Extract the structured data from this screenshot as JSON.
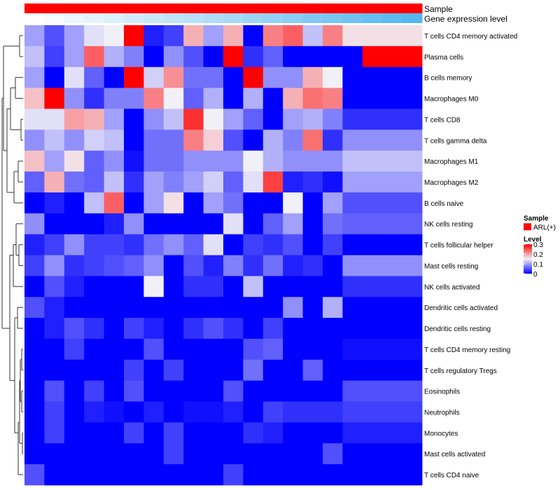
{
  "chart_data": {
    "type": "heatmap",
    "annotation_tracks": [
      {
        "name": "Sample",
        "color": "#ff0000"
      },
      {
        "name": "Gene expression level",
        "colors": [
          "#ffffff",
          "#f6fbfe",
          "#eef7fd",
          "#e5f4fc",
          "#dcf0fb",
          "#d3ecfa",
          "#caE8f9",
          "#c1e4f8",
          "#b8e1f8",
          "#afddf7",
          "#a6d9f6",
          "#9dd5f5",
          "#94d1f4",
          "#8bcdf3",
          "#82c9f2",
          "#79c6f1",
          "#70c2f0",
          "#67beef",
          "#5ebaee",
          "#55b6ed",
          "#4fb4ec"
        ]
      }
    ],
    "rows": [
      "T cells CD4 memory activated",
      "Plasma cells",
      "B cells memory",
      "Macrophages M0",
      "T cells CD8",
      "T cells gamma delta",
      "Macrophages M1",
      "Macrophages M2",
      "B cells naive",
      "NK cells resting",
      "T cells follicular helper",
      "Mast cells resting",
      "NK cells activated",
      "Dendritic cells activated",
      "Dendritic cells resting",
      "T cells CD4 memory resting",
      "T cells regulatory  Tregs",
      "Eosinophils",
      "Neutrophils",
      "Monocytes",
      "Mast cells activated",
      "T cells CD4 naive"
    ],
    "n_samples": 20,
    "values": [
      [
        0.1,
        0.05,
        0.1,
        0.14,
        0.15,
        0.3,
        0.02,
        0.04,
        0.19,
        0.1,
        0.19,
        0.0,
        0.22,
        0.24,
        0.12,
        0.22,
        0.16,
        0.16,
        0.16,
        0.16
      ],
      [
        0.12,
        0.04,
        0.1,
        0.24,
        0.11,
        0.08,
        0.0,
        0.09,
        0.05,
        0.0,
        0.3,
        0.03,
        0.06,
        0.0,
        0.0,
        0.0,
        0.0,
        0.3,
        0.3,
        0.3
      ],
      [
        0.1,
        0.0,
        0.14,
        0.06,
        0.0,
        0.3,
        0.13,
        0.21,
        0.07,
        0.07,
        0.0,
        0.3,
        0.09,
        0.09,
        0.19,
        0.15,
        0.0,
        0.0,
        0.0,
        0.0
      ],
      [
        0.18,
        0.3,
        0.09,
        0.03,
        0.08,
        0.08,
        0.22,
        0.15,
        0.06,
        0.11,
        0.0,
        0.11,
        0.0,
        0.19,
        0.23,
        0.22,
        0.0,
        0.0,
        0.0,
        0.0
      ],
      [
        0.14,
        0.14,
        0.2,
        0.19,
        0.1,
        0.0,
        0.09,
        0.12,
        0.27,
        0.15,
        0.1,
        0.06,
        0.0,
        0.1,
        0.11,
        0.08,
        0.03,
        0.03,
        0.03,
        0.03
      ],
      [
        0.09,
        0.12,
        0.09,
        0.13,
        0.12,
        0.0,
        0.07,
        0.07,
        0.22,
        0.17,
        0.05,
        0.0,
        0.11,
        0.08,
        0.23,
        0.03,
        0.09,
        0.09,
        0.09,
        0.09
      ],
      [
        0.18,
        0.1,
        0.16,
        0.06,
        0.09,
        0.01,
        0.07,
        0.07,
        0.09,
        0.09,
        0.09,
        0.15,
        0.11,
        0.09,
        0.09,
        0.09,
        0.12,
        0.12,
        0.12,
        0.12
      ],
      [
        0.06,
        0.19,
        0.07,
        0.06,
        0.12,
        0.03,
        0.1,
        0.08,
        0.1,
        0.13,
        0.06,
        0.14,
        0.26,
        0.02,
        0.03,
        0.01,
        0.1,
        0.1,
        0.1,
        0.1
      ],
      [
        0.0,
        0.02,
        0.0,
        0.12,
        0.24,
        0.0,
        0.1,
        0.16,
        0.0,
        0.1,
        0.07,
        0.0,
        0.0,
        0.15,
        0.0,
        0.1,
        0.05,
        0.05,
        0.05,
        0.05
      ],
      [
        0.09,
        0.0,
        0.0,
        0.0,
        0.02,
        0.09,
        0.0,
        0.0,
        0.0,
        0.0,
        0.14,
        0.0,
        0.06,
        0.1,
        0.0,
        0.07,
        0.06,
        0.06,
        0.06,
        0.06
      ],
      [
        0.02,
        0.04,
        0.09,
        0.04,
        0.04,
        0.03,
        0.07,
        0.09,
        0.06,
        0.14,
        0.0,
        0.04,
        0.03,
        0.05,
        0.0,
        0.04,
        0.0,
        0.0,
        0.0,
        0.0
      ],
      [
        0.04,
        0.09,
        0.03,
        0.04,
        0.05,
        0.06,
        0.09,
        0.0,
        0.05,
        0.02,
        0.08,
        0.03,
        0.07,
        0.02,
        0.03,
        0.0,
        0.09,
        0.09,
        0.09,
        0.09
      ],
      [
        0.0,
        0.05,
        0.02,
        0.0,
        0.0,
        0.0,
        0.15,
        0.0,
        0.03,
        0.03,
        0.0,
        0.12,
        0.0,
        0.0,
        0.0,
        0.0,
        0.03,
        0.03,
        0.03,
        0.03
      ],
      [
        0.05,
        0.02,
        0.0,
        0.0,
        0.0,
        0.0,
        0.0,
        0.0,
        0.0,
        0.0,
        0.0,
        0.0,
        0.0,
        0.09,
        0.0,
        0.11,
        0.0,
        0.0,
        0.0,
        0.0
      ],
      [
        0.0,
        0.02,
        0.05,
        0.03,
        0.0,
        0.04,
        0.02,
        0.0,
        0.03,
        0.05,
        0.03,
        0.0,
        0.04,
        0.0,
        0.0,
        0.0,
        0.0,
        0.0,
        0.0,
        0.0
      ],
      [
        0.0,
        0.0,
        0.04,
        0.0,
        0.0,
        0.0,
        0.05,
        0.0,
        0.0,
        0.0,
        0.0,
        0.05,
        0.06,
        0.0,
        0.0,
        0.0,
        0.01,
        0.01,
        0.01,
        0.01
      ],
      [
        0.0,
        0.0,
        0.0,
        0.0,
        0.0,
        0.04,
        0.0,
        0.04,
        0.0,
        0.0,
        0.0,
        0.07,
        0.0,
        0.0,
        0.06,
        0.0,
        0.0,
        0.0,
        0.0,
        0.0
      ],
      [
        0.0,
        0.05,
        0.0,
        0.04,
        0.0,
        0.05,
        0.0,
        0.0,
        0.0,
        0.0,
        0.05,
        0.0,
        0.0,
        0.0,
        0.0,
        0.0,
        0.05,
        0.05,
        0.05,
        0.05
      ],
      [
        0.0,
        0.04,
        0.0,
        0.02,
        0.01,
        0.0,
        0.02,
        0.0,
        0.01,
        0.01,
        0.02,
        0.0,
        0.04,
        0.03,
        0.03,
        0.03,
        0.04,
        0.04,
        0.04,
        0.04
      ],
      [
        0.0,
        0.04,
        0.0,
        0.0,
        0.0,
        0.04,
        0.0,
        0.04,
        0.0,
        0.0,
        0.0,
        0.03,
        0.02,
        0.0,
        0.0,
        0.0,
        0.02,
        0.02,
        0.02,
        0.02
      ],
      [
        0.0,
        0.0,
        0.0,
        0.0,
        0.0,
        0.0,
        0.0,
        0.04,
        0.0,
        0.0,
        0.0,
        0.0,
        0.0,
        0.0,
        0.0,
        0.05,
        0.0,
        0.0,
        0.0,
        0.0
      ],
      [
        0.05,
        0.0,
        0.0,
        0.0,
        0.0,
        0.0,
        0.0,
        0.0,
        0.0,
        0.0,
        0.04,
        0.0,
        0.0,
        0.0,
        0.0,
        0.0,
        0.0,
        0.0,
        0.0,
        0.0
      ]
    ],
    "color_scale": {
      "low": "#0000ff",
      "mid": "#f2f0f7",
      "high": "#ff0000",
      "domain": [
        0,
        0.3
      ]
    },
    "legend": {
      "sample_title": "Sample",
      "sample_entry": "ARL(+)",
      "sample_color": "#ff0000",
      "level_title": "Level",
      "ticks": [
        "0.3",
        "0.2",
        "0.1",
        "0"
      ],
      "tick_values": [
        0.3,
        0.2,
        0.1,
        0
      ]
    },
    "dendrogram": "row clustering tree on the left"
  }
}
